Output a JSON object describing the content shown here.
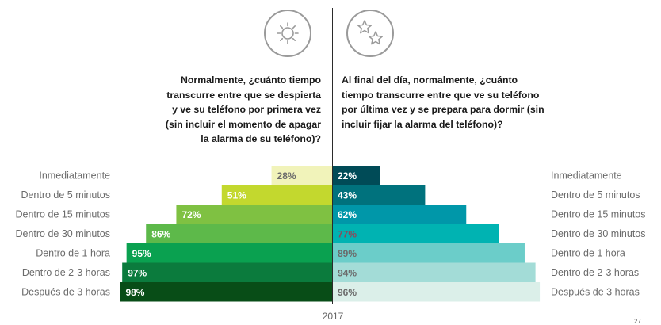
{
  "left_question": "Normalmente, ¿cuánto tiempo transcurre entre que se despierta y ve su teléfono por primera vez (sin incluir el momento de apagar la alarma de su teléfono)?",
  "right_question": "Al final del día, normalmente, ¿cuánto tiempo transcurre entre que ve su teléfono por última vez y se prepara para dormir (sin incluir fijar la alarma del teléfono)?",
  "left_icon": "sun-icon",
  "right_icon": "stars-icon",
  "year_label": "2017",
  "corner_text": "27",
  "chart_data": {
    "type": "bar",
    "orientation": "horizontal-diverging",
    "categories": [
      "Inmediatamente",
      "Dentro de 5 minutos",
      "Dentro de 15 minutos",
      "Dentro de 30 minutos",
      "Dentro de 1 hora",
      "Dentro de 2-3 horas",
      "Después de 3 horas"
    ],
    "series": [
      {
        "side": "left",
        "values": [
          28,
          51,
          72,
          86,
          95,
          97,
          98
        ],
        "labels": [
          "28%",
          "51%",
          "72%",
          "86%",
          "95%",
          "97%",
          "98%"
        ],
        "colors": [
          "#f1f3ba",
          "#c3d82e",
          "#7fc142",
          "#5db94a",
          "#0aa150",
          "#0b7b3d",
          "#084d17"
        ],
        "label_colors": [
          "#6b6b6b",
          "#ffffff",
          "#ffffff",
          "#ffffff",
          "#ffffff",
          "#ffffff",
          "#ffffff"
        ]
      },
      {
        "side": "right",
        "values": [
          22,
          43,
          62,
          77,
          89,
          94,
          96
        ],
        "labels": [
          "22%",
          "43%",
          "62%",
          "77%",
          "89%",
          "94%",
          "96%"
        ],
        "colors": [
          "#004b57",
          "#00727d",
          "#0097a9",
          "#00b3b2",
          "#6bcdc9",
          "#a3dcd7",
          "#dbefe9"
        ],
        "label_colors": [
          "#ffffff",
          "#ffffff",
          "#ffffff",
          "#8a4b5c",
          "#6b6b6b",
          "#6b6b6b",
          "#6b6b6b"
        ]
      }
    ],
    "xlim": [
      0,
      100
    ],
    "xlabel": "2017"
  }
}
